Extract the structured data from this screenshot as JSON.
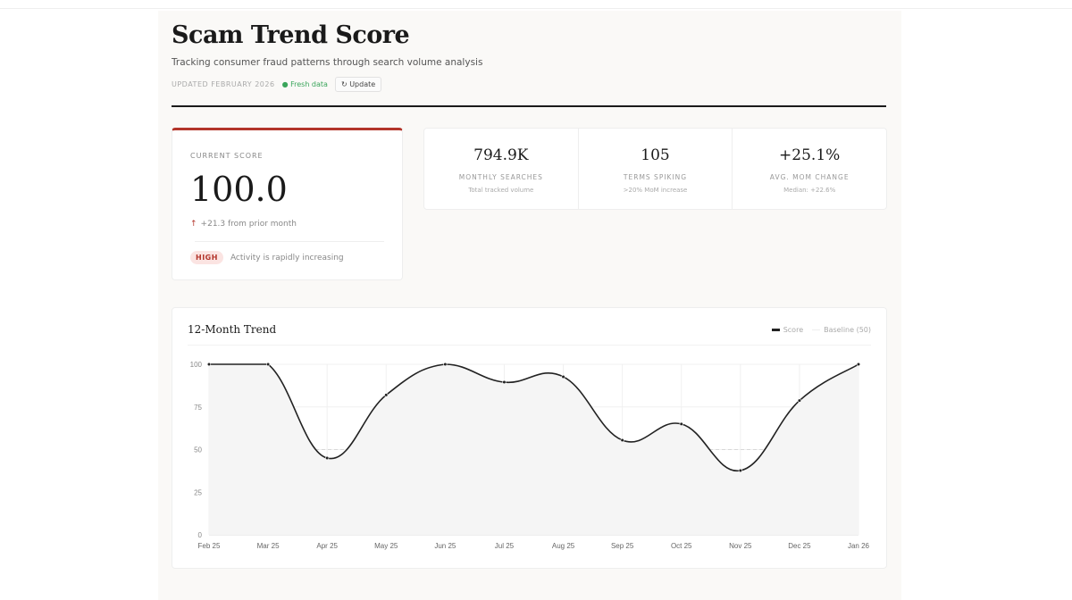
{
  "header": {
    "title": "Scam Trend Score",
    "subtitle": "Tracking consumer fraud patterns through search volume analysis",
    "updated": "UPDATED FEBRUARY 2026",
    "fresh": "Fresh data",
    "update_button": "Update"
  },
  "score": {
    "label": "CURRENT SCORE",
    "value": "100.0",
    "delta": "+21.3 from prior month",
    "badge": "HIGH",
    "badge_text": "Activity is rapidly increasing",
    "accent": "#b3352b"
  },
  "stats": [
    {
      "value": "794.9K",
      "label": "MONTHLY SEARCHES",
      "sub": "Total tracked volume"
    },
    {
      "value": "105",
      "label": "TERMS SPIKING",
      "sub": ">20% MoM increase"
    },
    {
      "value": "+25.1%",
      "label": "AVG. MOM CHANGE",
      "sub": "Median: +22.6%"
    }
  ],
  "chart_data": {
    "type": "line",
    "title": "12-Month Trend",
    "categories": [
      "Feb 25",
      "Mar 25",
      "Apr 25",
      "May 25",
      "Jun 25",
      "Jul 25",
      "Aug 25",
      "Sep 25",
      "Oct 25",
      "Nov 25",
      "Dec 25",
      "Jan 26"
    ],
    "series": [
      {
        "name": "Score",
        "values": [
          100,
          100,
          45,
          82,
          100,
          89.5,
          92.7,
          55.5,
          65,
          37.7,
          78.7,
          100
        ],
        "color": "#222222"
      },
      {
        "name": "Baseline (50)",
        "values": [
          50,
          50,
          50,
          50,
          50,
          50,
          50,
          50,
          50,
          50,
          50,
          50
        ],
        "color": "#dddddd"
      }
    ],
    "yticks": [
      0,
      25,
      50,
      75,
      100
    ],
    "ylim": [
      0,
      100
    ],
    "grid": true,
    "legend": "top-right",
    "area_fill": true
  }
}
